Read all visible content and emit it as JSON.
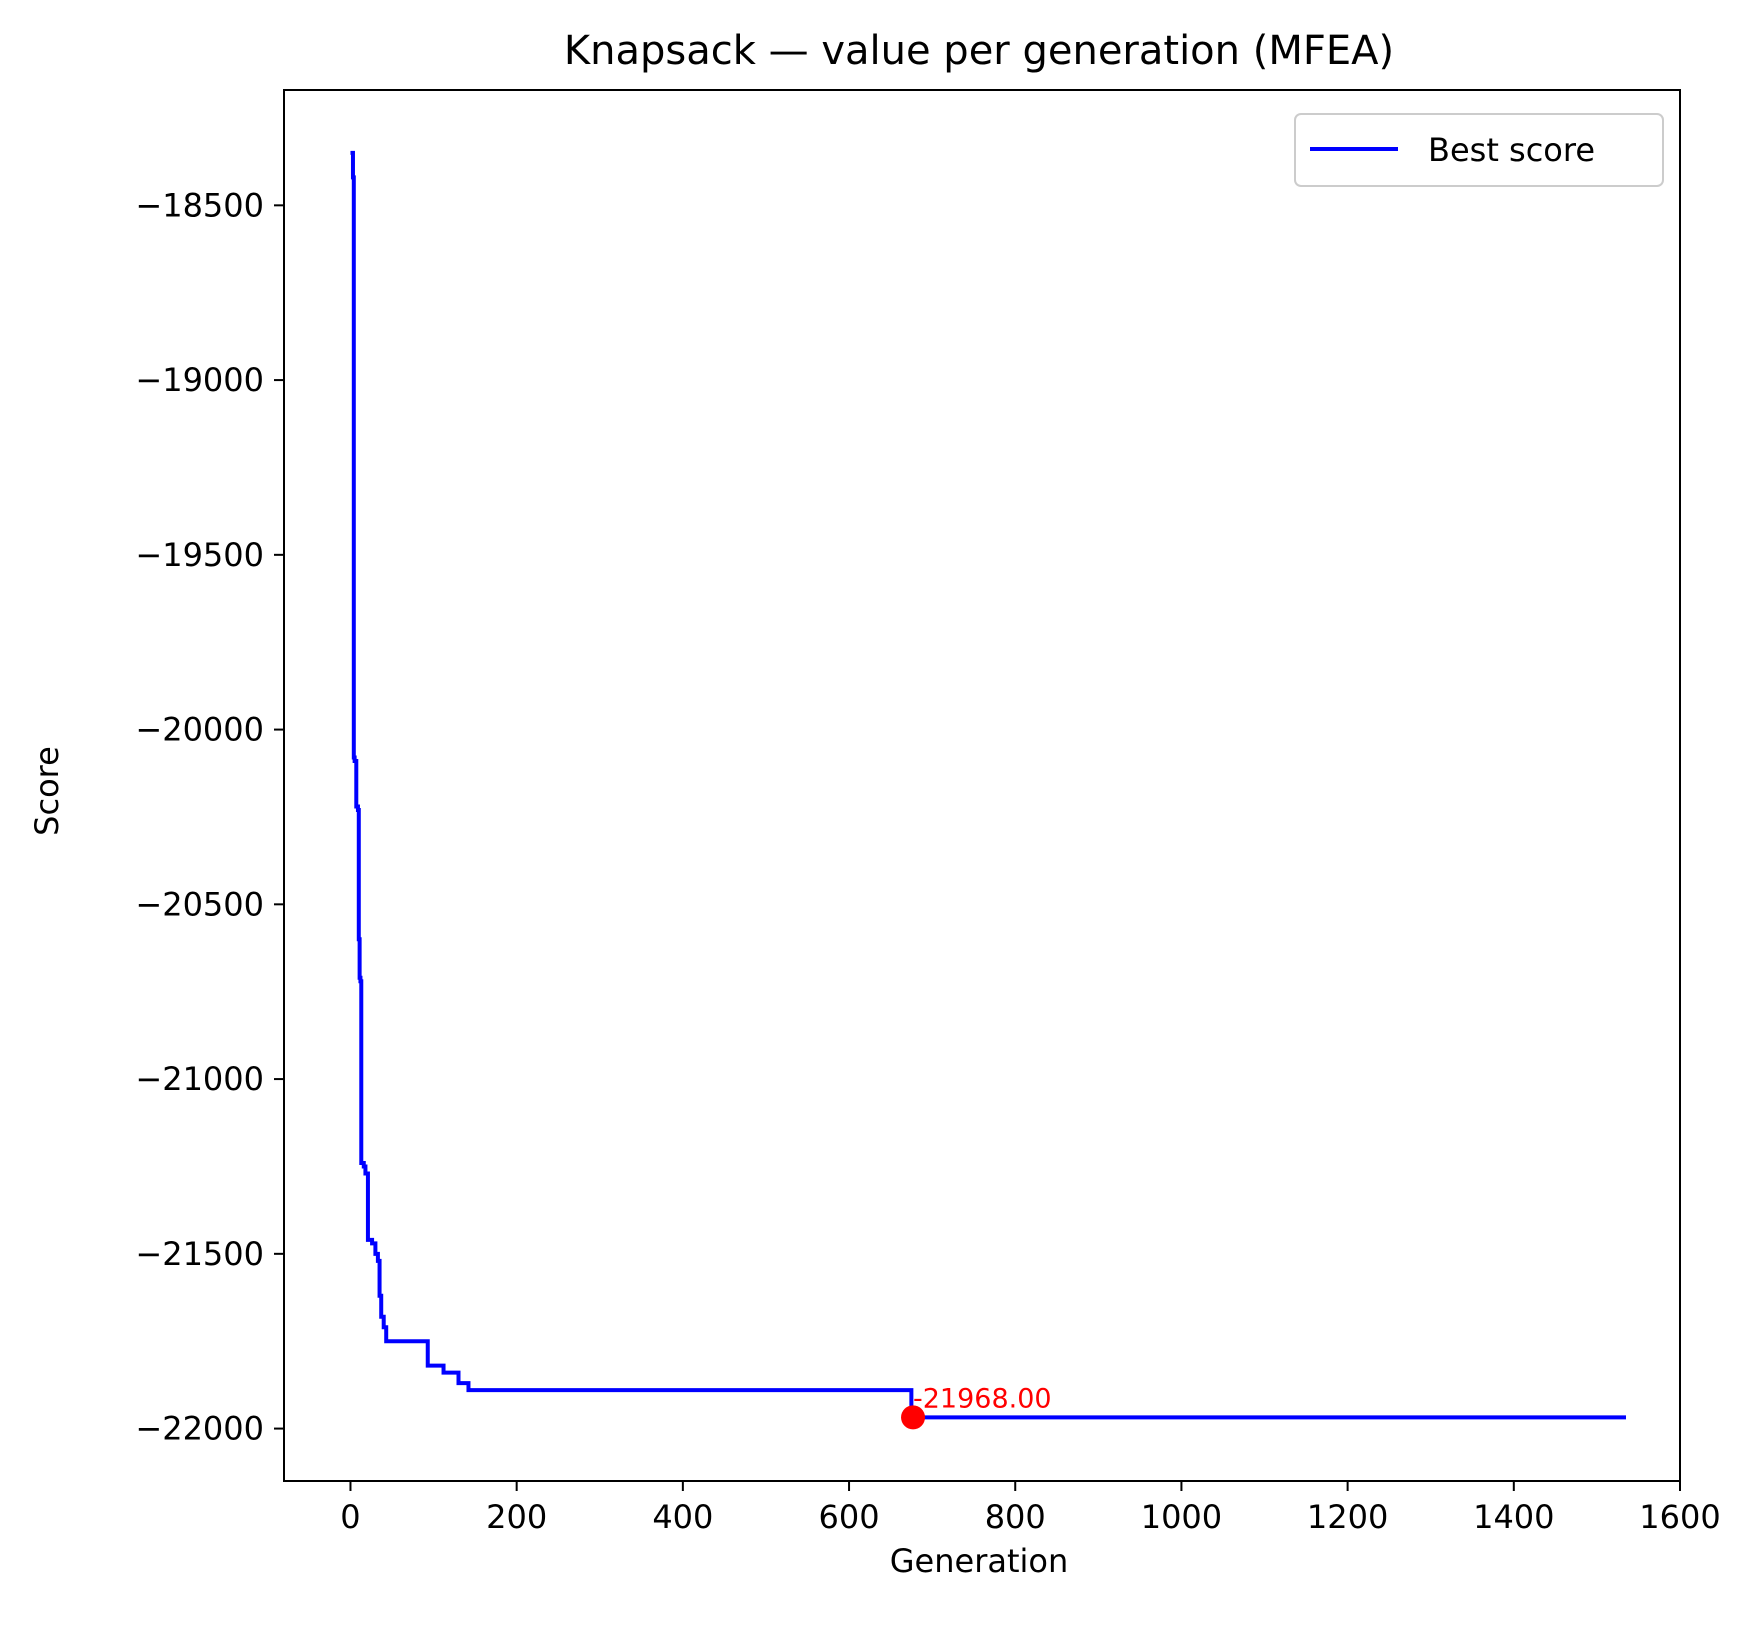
{
  "chart_data": {
    "type": "line",
    "title": "Knapsack — value per generation (MFEA)",
    "xlabel": "Generation",
    "ylabel": "Score",
    "xlim": [
      -80,
      1600
    ],
    "ylim": [
      -22150,
      -18170
    ],
    "xticks": [
      0,
      200,
      400,
      600,
      800,
      1000,
      1200,
      1400,
      1600
    ],
    "xtick_labels": [
      "0",
      "200",
      "400",
      "600",
      "800",
      "1000",
      "1200",
      "1400",
      "1600"
    ],
    "yticks": [
      -18500,
      -19000,
      -19500,
      -20000,
      -20500,
      -21000,
      -21500,
      -22000
    ],
    "ytick_labels": [
      "−18500",
      "−19000",
      "−19500",
      "−20000",
      "−20500",
      "−21000",
      "−21500",
      "−22000"
    ],
    "grid": false,
    "legend": {
      "position": "top-right",
      "entries": [
        "Best score"
      ]
    },
    "series": [
      {
        "name": "Best score",
        "color": "#0000ff",
        "step": true,
        "points": [
          [
            0,
            -18350
          ],
          [
            2,
            -18350
          ],
          [
            3,
            -18420
          ],
          [
            4,
            -20080
          ],
          [
            5,
            -20090
          ],
          [
            7,
            -20220
          ],
          [
            9,
            -20230
          ],
          [
            10,
            -20600
          ],
          [
            11,
            -20710
          ],
          [
            12,
            -20720
          ],
          [
            13,
            -21240
          ],
          [
            16,
            -21250
          ],
          [
            18,
            -21270
          ],
          [
            21,
            -21460
          ],
          [
            26,
            -21470
          ],
          [
            30,
            -21500
          ],
          [
            33,
            -21520
          ],
          [
            35,
            -21620
          ],
          [
            37,
            -21680
          ],
          [
            40,
            -21710
          ],
          [
            43,
            -21750
          ],
          [
            93,
            -21820
          ],
          [
            112,
            -21840
          ],
          [
            130,
            -21870
          ],
          [
            142,
            -21890
          ],
          [
            675,
            -21968
          ],
          [
            1535,
            -21968
          ]
        ]
      }
    ],
    "highlight": {
      "x": 677,
      "y": -21968,
      "label": "-21968.00",
      "color": "#ff0000"
    }
  }
}
